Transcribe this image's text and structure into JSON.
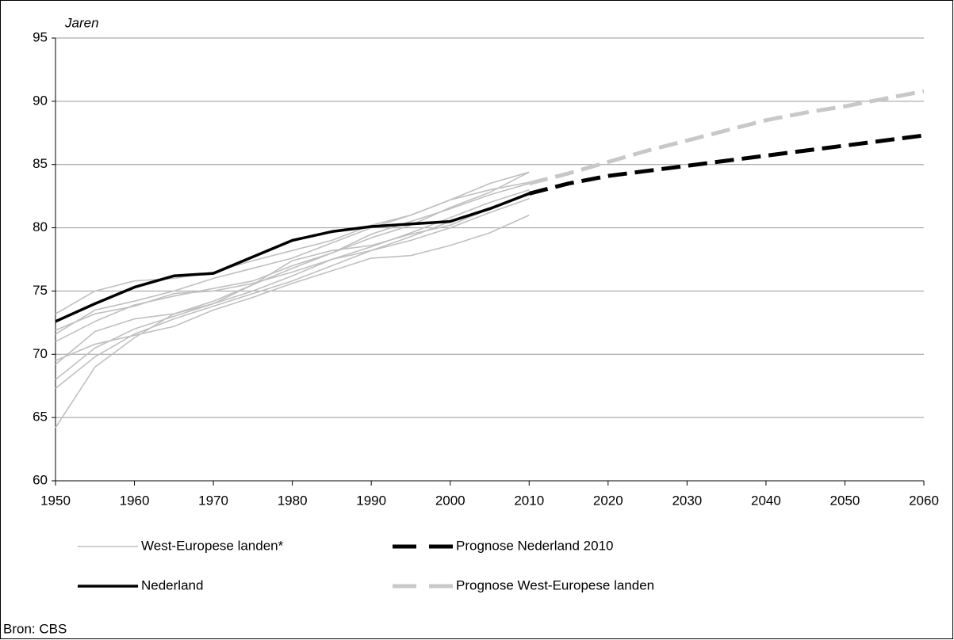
{
  "chart_data": {
    "type": "line",
    "y_label": "Jaren",
    "source": "Bron: CBS",
    "x": [
      1950,
      1955,
      1960,
      1965,
      1970,
      1975,
      1980,
      1985,
      1990,
      1995,
      2000,
      2005,
      2010,
      2015,
      2020,
      2025,
      2030,
      2035,
      2040,
      2045,
      2050,
      2055,
      2060
    ],
    "xlim": [
      1950,
      2060
    ],
    "xticks": [
      1950,
      1960,
      1970,
      1980,
      1990,
      2000,
      2010,
      2020,
      2030,
      2040,
      2050,
      2060
    ],
    "ylim": [
      60,
      95
    ],
    "yticks": [
      60,
      65,
      70,
      75,
      80,
      85,
      90,
      95
    ],
    "grid": true,
    "series": [
      {
        "name": "West-Europese landen*",
        "color": "#c0c0c0",
        "values": [
          73.2,
          75.0,
          75.8,
          76.0,
          76.5,
          77.4,
          78.2,
          79.0,
          80.2,
          81.0,
          82.2,
          83.0,
          83.6,
          null,
          null,
          null,
          null,
          null,
          null,
          null,
          null,
          null,
          null
        ]
      },
      {
        "name": "Nederland",
        "color": "#000000",
        "bold": true,
        "values": [
          72.6,
          74.0,
          75.3,
          76.2,
          76.4,
          77.7,
          79.0,
          79.7,
          80.1,
          80.3,
          80.5,
          81.5,
          82.7,
          null,
          null,
          null,
          null,
          null,
          null,
          null,
          null,
          null,
          null
        ]
      },
      {
        "name": "Prognose Nederland 2010",
        "color": "#000000",
        "bold": true,
        "line_style": "dashed",
        "values": [
          null,
          null,
          null,
          null,
          null,
          null,
          null,
          null,
          null,
          null,
          null,
          null,
          82.7,
          83.5,
          84.1,
          84.5,
          84.9,
          85.3,
          85.7,
          86.1,
          86.5,
          86.9,
          87.3
        ]
      },
      {
        "name": "Prognose West-Europese landen",
        "color": "#c8c8c8",
        "bold": true,
        "line_style": "dashed",
        "values": [
          null,
          null,
          null,
          null,
          null,
          null,
          null,
          null,
          null,
          null,
          null,
          null,
          83.5,
          84.3,
          85.2,
          86.1,
          86.9,
          87.7,
          88.5,
          89.1,
          89.6,
          90.2,
          90.8
        ]
      },
      {
        "color": "#c0c0c0",
        "values": [
          71.6,
          73.5,
          74.2,
          75.0,
          76.0,
          76.8,
          77.6,
          78.8,
          80.0,
          81.0,
          82.2,
          83.5,
          84.4,
          null,
          null,
          null,
          null,
          null,
          null,
          null,
          null,
          null,
          null
        ]
      },
      {
        "color": "#c0c0c0",
        "values": [
          71.0,
          72.6,
          73.9,
          74.6,
          75.2,
          75.8,
          77.0,
          78.0,
          79.5,
          80.5,
          81.5,
          82.6,
          83.5,
          null,
          null,
          null,
          null,
          null,
          null,
          null,
          null,
          null,
          null
        ]
      },
      {
        "color": "#c0c0c0",
        "values": [
          69.2,
          71.8,
          72.8,
          73.2,
          74.2,
          75.5,
          76.8,
          78.0,
          79.2,
          80.2,
          81.6,
          82.8,
          84.4,
          null,
          null,
          null,
          null,
          null,
          null,
          null,
          null,
          null,
          null
        ]
      },
      {
        "color": "#c0c0c0",
        "values": [
          68.0,
          70.5,
          72.0,
          73.0,
          74.0,
          75.0,
          76.2,
          77.5,
          78.5,
          79.6,
          80.8,
          82.0,
          83.0,
          null,
          null,
          null,
          null,
          null,
          null,
          null,
          null,
          null,
          null
        ]
      },
      {
        "color": "#c0c0c0",
        "values": [
          67.3,
          69.8,
          71.6,
          72.8,
          73.8,
          74.8,
          75.8,
          77.0,
          78.2,
          79.3,
          80.5,
          81.6,
          82.6,
          null,
          null,
          null,
          null,
          null,
          null,
          null,
          null,
          null,
          null
        ]
      },
      {
        "color": "#c0c0c0",
        "values": [
          64.2,
          69.0,
          71.3,
          73.2,
          74.0,
          75.5,
          77.4,
          78.2,
          78.6,
          79.5,
          80.2,
          81.5,
          82.8,
          null,
          null,
          null,
          null,
          null,
          null,
          null,
          null,
          null,
          null
        ]
      },
      {
        "color": "#c0c0c0",
        "values": [
          69.5,
          70.8,
          71.5,
          72.2,
          73.5,
          74.5,
          75.6,
          76.6,
          77.6,
          77.8,
          78.6,
          79.6,
          81.0,
          null,
          null,
          null,
          null,
          null,
          null,
          null,
          null,
          null,
          null
        ]
      },
      {
        "color": "#c0c0c0",
        "values": [
          71.9,
          73.2,
          73.8,
          74.8,
          75.0,
          75.6,
          76.5,
          77.5,
          78.2,
          79.0,
          80.0,
          81.2,
          82.3,
          null,
          null,
          null,
          null,
          null,
          null,
          null,
          null,
          null,
          null
        ]
      }
    ]
  }
}
